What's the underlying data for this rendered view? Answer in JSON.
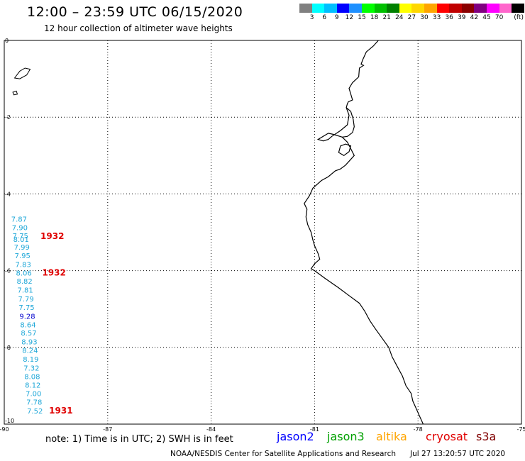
{
  "header": {
    "title": "12:00 – 23:59 UTC 06/15/2020",
    "subtitle": "12 hour collection of altimeter wave heights"
  },
  "scale": {
    "unit": "(ft)",
    "colors": [
      "#808080",
      "#00ffff",
      "#00bfff",
      "#0000ff",
      "#1e90ff",
      "#00ff00",
      "#00c000",
      "#008000",
      "#ffff00",
      "#ffd700",
      "#ffa500",
      "#ff0000",
      "#c00000",
      "#8b0000",
      "#800080",
      "#ff00ff",
      "#ff66cc",
      "#000000"
    ],
    "labels": [
      "3",
      "6",
      "9",
      "12",
      "15",
      "18",
      "21",
      "24",
      "27",
      "30",
      "33",
      "36",
      "39",
      "42",
      "45",
      "70"
    ]
  },
  "map": {
    "lon_range": [
      -90,
      -75
    ],
    "lat_range": [
      -10,
      0
    ],
    "lon_ticks": [
      "-90",
      "-87",
      "-84",
      "-81",
      "-78",
      "-75"
    ],
    "lat_ticks": [
      "0",
      "-2",
      "-4",
      "-6",
      "-8",
      "-10"
    ],
    "observations": [
      {
        "lon": -89.8,
        "lat": -4.65,
        "value": "7.87",
        "color": "#1ea7d8"
      },
      {
        "lon": -89.78,
        "lat": -4.87,
        "value": "7.90",
        "color": "#1ea7d8"
      },
      {
        "lon": -89.76,
        "lat": -5.08,
        "value": "7.75",
        "color": "#1ea7d8"
      },
      {
        "lon": -89.74,
        "lat": -5.18,
        "value": "8.01",
        "color": "#1ea7d8"
      },
      {
        "lon": -89.72,
        "lat": -5.38,
        "value": "7.99",
        "color": "#1ea7d8"
      },
      {
        "lon": -89.7,
        "lat": -5.6,
        "value": "7.95",
        "color": "#1ea7d8"
      },
      {
        "lon": -89.68,
        "lat": -5.83,
        "value": "7.83",
        "color": "#1ea7d8"
      },
      {
        "lon": -89.66,
        "lat": -6.05,
        "value": "8.06",
        "color": "#1ea7d8"
      },
      {
        "lon": -89.64,
        "lat": -6.27,
        "value": "8.82",
        "color": "#1ea7d8"
      },
      {
        "lon": -89.62,
        "lat": -6.5,
        "value": "7.81",
        "color": "#1ea7d8"
      },
      {
        "lon": -89.6,
        "lat": -6.73,
        "value": "7.79",
        "color": "#1ea7d8"
      },
      {
        "lon": -89.58,
        "lat": -6.95,
        "value": "7.75",
        "color": "#1ea7d8"
      },
      {
        "lon": -89.56,
        "lat": -7.18,
        "value": "9.28",
        "color": "#0000cd"
      },
      {
        "lon": -89.54,
        "lat": -7.4,
        "value": "8.64",
        "color": "#1ea7d8"
      },
      {
        "lon": -89.52,
        "lat": -7.62,
        "value": "8.57",
        "color": "#1ea7d8"
      },
      {
        "lon": -89.5,
        "lat": -7.85,
        "value": "8.93",
        "color": "#1ea7d8"
      },
      {
        "lon": -89.48,
        "lat": -8.07,
        "value": "8.24",
        "color": "#1ea7d8"
      },
      {
        "lon": -89.46,
        "lat": -8.3,
        "value": "8.19",
        "color": "#1ea7d8"
      },
      {
        "lon": -89.44,
        "lat": -8.53,
        "value": "7.32",
        "color": "#1ea7d8"
      },
      {
        "lon": -89.42,
        "lat": -8.75,
        "value": "8.08",
        "color": "#1ea7d8"
      },
      {
        "lon": -89.4,
        "lat": -8.97,
        "value": "8.12",
        "color": "#1ea7d8"
      },
      {
        "lon": -89.38,
        "lat": -9.2,
        "value": "7.00",
        "color": "#1ea7d8"
      },
      {
        "lon": -89.36,
        "lat": -9.42,
        "value": "7.78",
        "color": "#1ea7d8"
      },
      {
        "lon": -89.34,
        "lat": -9.65,
        "value": "7.52",
        "color": "#1ea7d8"
      }
    ],
    "pass_labels": [
      {
        "lon": -88.95,
        "lat": -5.1,
        "text": "1932",
        "color": "#e00000"
      },
      {
        "lon": -88.9,
        "lat": -6.05,
        "text": "1932",
        "color": "#e00000"
      },
      {
        "lon": -88.7,
        "lat": -9.65,
        "text": "1931",
        "color": "#e00000"
      }
    ],
    "coastline": [
      [
        -79.15,
        0.0
      ],
      [
        -79.3,
        -0.15
      ],
      [
        -79.5,
        -0.3
      ],
      [
        -79.6,
        -0.5
      ],
      [
        -79.65,
        -0.62
      ],
      [
        -79.58,
        -0.65
      ],
      [
        -79.7,
        -0.72
      ],
      [
        -79.72,
        -0.95
      ],
      [
        -79.9,
        -1.1
      ],
      [
        -80.0,
        -1.25
      ],
      [
        -79.9,
        -1.55
      ],
      [
        -80.02,
        -1.6
      ],
      [
        -80.05,
        -1.65
      ],
      [
        -80.08,
        -1.75
      ],
      [
        -80.0,
        -1.95
      ],
      [
        -80.05,
        -2.2
      ],
      [
        -80.25,
        -2.35
      ],
      [
        -80.5,
        -2.5
      ],
      [
        -80.6,
        -2.58
      ],
      [
        -80.75,
        -2.62
      ],
      [
        -80.9,
        -2.58
      ],
      [
        -80.6,
        -2.42
      ],
      [
        -80.45,
        -2.45
      ],
      [
        -80.2,
        -2.52
      ],
      [
        -80.05,
        -2.65
      ],
      [
        -79.95,
        -2.82
      ],
      [
        -79.85,
        -3.0
      ],
      [
        -79.95,
        -3.1
      ],
      [
        -80.1,
        -3.25
      ],
      [
        -80.25,
        -3.35
      ],
      [
        -80.4,
        -3.4
      ],
      [
        -80.6,
        -3.55
      ],
      [
        -80.8,
        -3.65
      ],
      [
        -81.05,
        -3.85
      ],
      [
        -81.15,
        -4.05
      ],
      [
        -81.3,
        -4.25
      ],
      [
        -81.22,
        -4.4
      ],
      [
        -81.25,
        -4.6
      ],
      [
        -81.2,
        -4.8
      ],
      [
        -81.1,
        -5.0
      ],
      [
        -81.05,
        -5.2
      ],
      [
        -81.0,
        -5.35
      ],
      [
        -80.9,
        -5.55
      ],
      [
        -80.85,
        -5.7
      ],
      [
        -81.0,
        -5.82
      ],
      [
        -81.1,
        -5.95
      ],
      [
        -81.0,
        -6.0
      ],
      [
        -80.7,
        -6.2
      ],
      [
        -80.3,
        -6.45
      ],
      [
        -80.0,
        -6.65
      ],
      [
        -79.7,
        -6.85
      ],
      [
        -79.55,
        -7.05
      ],
      [
        -79.4,
        -7.3
      ],
      [
        -79.25,
        -7.5
      ],
      [
        -79.05,
        -7.75
      ],
      [
        -78.85,
        -8.0
      ],
      [
        -78.75,
        -8.25
      ],
      [
        -78.6,
        -8.5
      ],
      [
        -78.45,
        -8.75
      ],
      [
        -78.35,
        -9.0
      ],
      [
        -78.2,
        -9.2
      ],
      [
        -78.15,
        -9.4
      ],
      [
        -78.05,
        -9.6
      ],
      [
        -77.95,
        -9.8
      ],
      [
        -77.85,
        -10.0
      ]
    ],
    "gulf_inlet": [
      [
        -80.08,
        -1.75
      ],
      [
        -79.95,
        -1.85
      ],
      [
        -79.88,
        -2.05
      ],
      [
        -79.85,
        -2.25
      ],
      [
        -79.9,
        -2.4
      ],
      [
        -80.05,
        -2.5
      ],
      [
        -80.2,
        -2.52
      ]
    ],
    "puna_island": [
      [
        -80.25,
        -2.75
      ],
      [
        -80.1,
        -2.7
      ],
      [
        -79.95,
        -2.75
      ],
      [
        -80.0,
        -2.9
      ],
      [
        -80.15,
        -3.0
      ],
      [
        -80.3,
        -2.92
      ],
      [
        -80.25,
        -2.75
      ]
    ],
    "island_large": [
      [
        -89.55,
        -0.8
      ],
      [
        -89.4,
        -0.72
      ],
      [
        -89.25,
        -0.75
      ],
      [
        -89.35,
        -0.9
      ],
      [
        -89.55,
        -1.0
      ],
      [
        -89.7,
        -0.98
      ],
      [
        -89.55,
        -0.8
      ]
    ],
    "island_small": [
      [
        -89.75,
        -1.35
      ],
      [
        -89.65,
        -1.32
      ],
      [
        -89.62,
        -1.4
      ],
      [
        -89.72,
        -1.42
      ],
      [
        -89.75,
        -1.35
      ]
    ]
  },
  "footer": {
    "note": "note: 1) Time is in UTC; 2) SWH is in feet",
    "satellites": [
      {
        "name": "jason2",
        "color": "#0000ff"
      },
      {
        "name": "jason3",
        "color": "#00a000"
      },
      {
        "name": "altika",
        "color": "#ffa500"
      },
      {
        "name": "cryosat",
        "color": "#e00000"
      },
      {
        "name": "s3a",
        "color": "#800000"
      }
    ],
    "credit": "NOAA/NESDIS Center for Satellite Applications and Research",
    "timestamp": "Jul 27 13:20:57 UTC 2020"
  }
}
